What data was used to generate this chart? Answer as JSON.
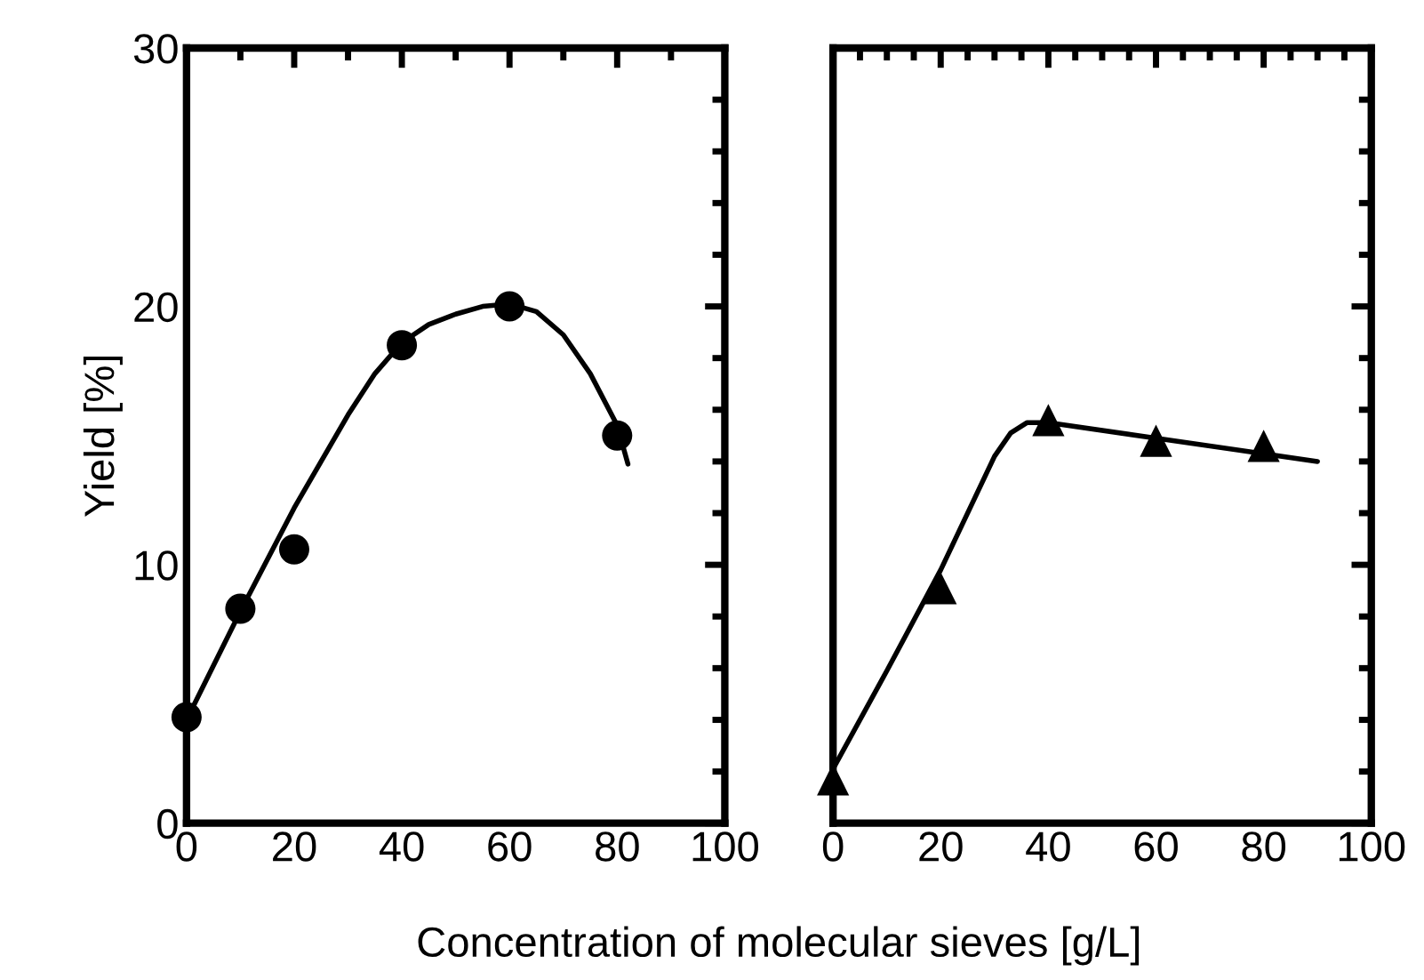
{
  "chart_data": [
    {
      "type": "scatter",
      "ylabel": "Yield [%]",
      "xlabel": "Concentration of molecular sieves [g/L]",
      "xlim": [
        0,
        100
      ],
      "xticks": [
        0,
        20,
        40,
        60,
        80,
        100
      ],
      "ylim": [
        0,
        30
      ],
      "yticks": [
        0,
        10,
        20,
        30
      ],
      "grid": false,
      "legend": false,
      "series": [
        {
          "color": "#000000",
          "marker": "circle",
          "x": [
            0,
            10,
            20,
            40,
            60,
            80
          ],
          "values": [
            4.1,
            8.3,
            10.6,
            18.5,
            20.0,
            15.0
          ]
        },
        {
          "type": "line",
          "color": "#000000",
          "marker": "none",
          "line_style": "solid",
          "x": [
            0,
            10,
            20,
            25,
            30,
            35,
            40,
            45,
            50,
            55,
            60,
            65,
            70,
            75,
            80,
            82
          ],
          "values": [
            4.0,
            8.2,
            12.2,
            14.0,
            15.8,
            17.4,
            18.6,
            19.3,
            19.7,
            20.0,
            20.1,
            19.8,
            18.9,
            17.4,
            15.4,
            13.9
          ]
        }
      ]
    },
    {
      "type": "scatter",
      "xlim": [
        0,
        100
      ],
      "xticks": [
        0,
        20,
        40,
        60,
        80,
        100
      ],
      "ylim": [
        0,
        30
      ],
      "yticks": [
        0,
        10,
        20,
        30
      ],
      "tick_labels": "x",
      "grid": false,
      "legend": false,
      "series": [
        {
          "color": "#000000",
          "marker": "triangle",
          "x": [
            0,
            20,
            40,
            60,
            80
          ],
          "values": [
            1.7,
            9.1,
            15.6,
            14.8,
            14.6
          ]
        },
        {
          "type": "line",
          "color": "#000000",
          "marker": "none",
          "line_style": "solid",
          "x": [
            0,
            10,
            20,
            30,
            33,
            36,
            40,
            60,
            80,
            90
          ],
          "values": [
            2.1,
            5.9,
            9.8,
            14.2,
            15.1,
            15.5,
            15.5,
            14.9,
            14.3,
            14.0
          ]
        }
      ]
    }
  ]
}
